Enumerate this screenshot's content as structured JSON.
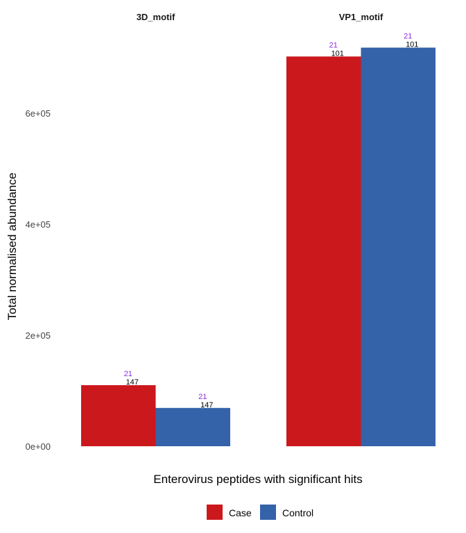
{
  "chart_data": {
    "type": "bar",
    "xlabel": "Enterovirus peptides with significant hits",
    "ylabel": "Total normalised abundance",
    "ylim": [
      0,
      720000
    ],
    "yticks": [
      {
        "value": 0,
        "label": "0e+00"
      },
      {
        "value": 200000,
        "label": "2e+05"
      },
      {
        "value": 400000,
        "label": "4e+05"
      },
      {
        "value": 600000,
        "label": "6e+05"
      }
    ],
    "grid": false,
    "legend_position": "bottom",
    "panels": [
      {
        "title": "3D_motif",
        "bars": [
          {
            "group": "Case",
            "value": 110000,
            "count_label": "147",
            "hits_label": "21"
          },
          {
            "group": "Control",
            "value": 69000,
            "count_label": "147",
            "hits_label": "21"
          }
        ]
      },
      {
        "title": "VP1_motif",
        "bars": [
          {
            "group": "Case",
            "value": 702000,
            "count_label": "101",
            "hits_label": "21"
          },
          {
            "group": "Control",
            "value": 718000,
            "count_label": "101",
            "hits_label": "21"
          }
        ]
      }
    ],
    "series": [
      {
        "name": "Case",
        "color": "#CB181D"
      },
      {
        "name": "Control",
        "color": "#3563A9"
      }
    ],
    "hits_label_color": "#8A2BE2"
  }
}
